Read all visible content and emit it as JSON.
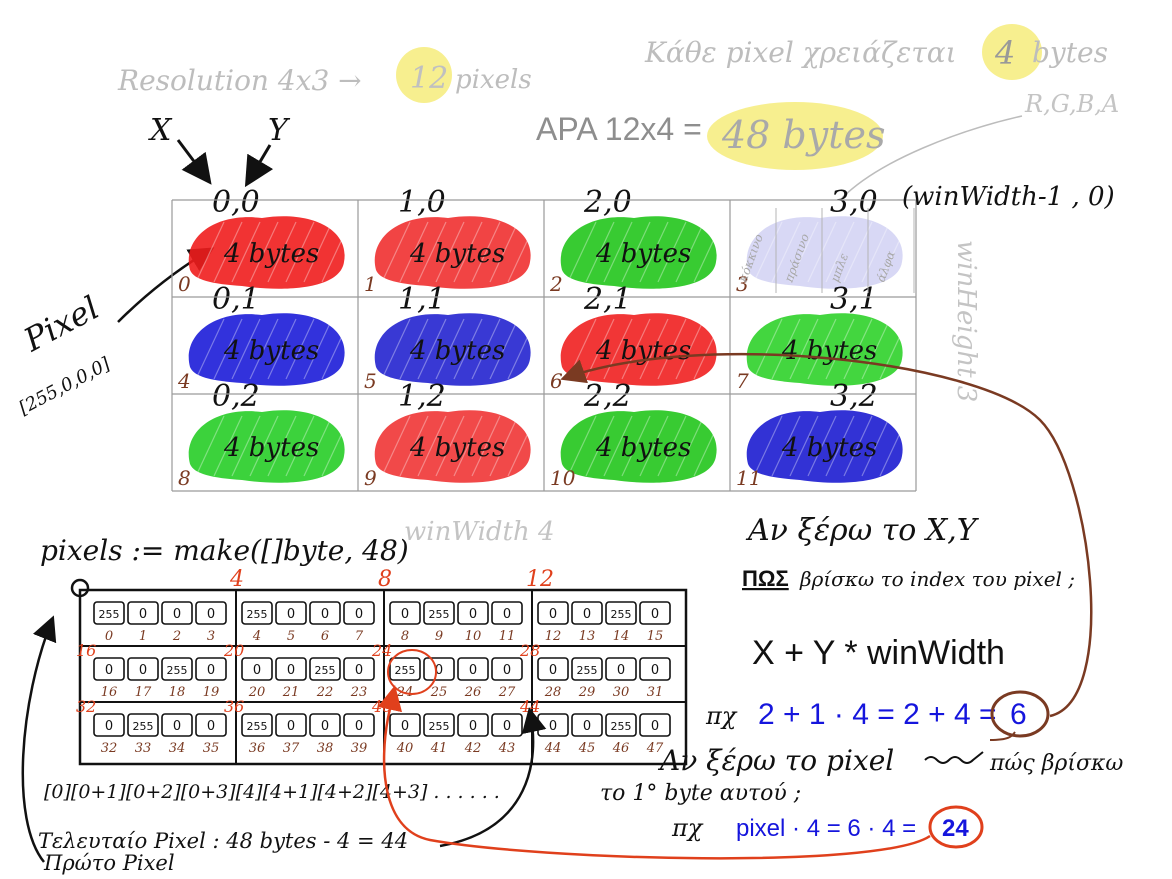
{
  "header": {
    "resolution_prefix": "Resolution 4x3 →",
    "resolution_count": "12",
    "resolution_suffix": "pixels",
    "bytes_per_pixel_prefix": "Κάθε pixel χρειάζεται",
    "bytes_per_pixel_value": "4",
    "bytes_per_pixel_suffix": "bytes",
    "channels": "R,G,B,A",
    "total_prefix": "ΑΡΑ 12x4 =",
    "total_value": "48 bytes"
  },
  "axes": {
    "x_label": "X",
    "y_label": "Y"
  },
  "pixel_note": {
    "label": "Pixel",
    "value": "[255,0,0,0]"
  },
  "grid": {
    "cell_text": "4 bytes",
    "cells": [
      {
        "coord": "0,0",
        "index": "0",
        "color": "#ef1d1d"
      },
      {
        "coord": "1,0",
        "index": "1",
        "color": "#ef3030"
      },
      {
        "coord": "2,0",
        "index": "2",
        "color": "#22c51c"
      },
      {
        "coord": "3,0",
        "index": "3",
        "color": "#a9a9e8"
      },
      {
        "coord": "0,1",
        "index": "4",
        "color": "#1c1cd8"
      },
      {
        "coord": "1,1",
        "index": "5",
        "color": "#2323cf"
      },
      {
        "coord": "2,1",
        "index": "6",
        "color": "#ef2020"
      },
      {
        "coord": "3,1",
        "index": "7",
        "color": "#2fd22a"
      },
      {
        "coord": "0,2",
        "index": "8",
        "color": "#27cd27"
      },
      {
        "coord": "1,2",
        "index": "9",
        "color": "#ef3535"
      },
      {
        "coord": "2,2",
        "index": "10",
        "color": "#22c51c"
      },
      {
        "coord": "3,2",
        "index": "11",
        "color": "#1c1cd0"
      }
    ],
    "last_col_channels": [
      "κόκκινο",
      "πράσινο",
      "μπλε",
      "άλφα"
    ],
    "corner_label": "(winWidth-1 , 0)",
    "height_label": "winHeight 3",
    "width_label": "winWidth 4"
  },
  "bytes_array": {
    "declaration": "pixels := make([]byte, 48)",
    "origin_marker": "o",
    "row_markers": [
      "4",
      "8",
      "12"
    ],
    "rows": [
      {
        "start_markers": [
          "",
          "",
          "",
          ""
        ],
        "cells": [
          {
            "vals": [
              "255",
              "0",
              "0",
              "0"
            ],
            "idx": [
              "0",
              "1",
              "2",
              "3"
            ]
          },
          {
            "vals": [
              "255",
              "0",
              "0",
              "0"
            ],
            "idx": [
              "4",
              "5",
              "6",
              "7"
            ]
          },
          {
            "vals": [
              "0",
              "255",
              "0",
              "0"
            ],
            "idx": [
              "8",
              "9",
              "10",
              "11"
            ]
          },
          {
            "vals": [
              "0",
              "0",
              "255",
              "0"
            ],
            "idx": [
              "12",
              "13",
              "14",
              "15"
            ]
          }
        ]
      },
      {
        "start_markers": [
          "16",
          "20",
          "24",
          "28"
        ],
        "cells": [
          {
            "vals": [
              "0",
              "0",
              "255",
              "0"
            ],
            "idx": [
              "16",
              "17",
              "18",
              "19"
            ]
          },
          {
            "vals": [
              "0",
              "0",
              "255",
              "0"
            ],
            "idx": [
              "20",
              "21",
              "22",
              "23"
            ]
          },
          {
            "vals": [
              "255",
              "0",
              "0",
              "0"
            ],
            "idx": [
              "24",
              "25",
              "26",
              "27"
            ]
          },
          {
            "vals": [
              "0",
              "255",
              "0",
              "0"
            ],
            "idx": [
              "28",
              "29",
              "30",
              "31"
            ]
          }
        ]
      },
      {
        "start_markers": [
          "32",
          "36",
          "40",
          "44"
        ],
        "cells": [
          {
            "vals": [
              "0",
              "255",
              "0",
              "0"
            ],
            "idx": [
              "32",
              "33",
              "34",
              "35"
            ]
          },
          {
            "vals": [
              "255",
              "0",
              "0",
              "0"
            ],
            "idx": [
              "36",
              "37",
              "38",
              "39"
            ]
          },
          {
            "vals": [
              "0",
              "255",
              "0",
              "0"
            ],
            "idx": [
              "40",
              "41",
              "42",
              "43"
            ]
          },
          {
            "vals": [
              "0",
              "0",
              "255",
              "0"
            ],
            "idx": [
              "44",
              "45",
              "46",
              "47"
            ]
          }
        ]
      }
    ],
    "index_sequence": "[0][0+1][0+2][0+3][4][4+1][4+2][4+3] . . . . . .",
    "last_pixel_note": "Τελευταίο Pixel : 48 bytes - 4 = 44",
    "first_pixel_note": "Πρώτο Pixel"
  },
  "explanation": {
    "q1_line1": "Αν ξέρω το X,Y",
    "q1_line2_bold": "ΠΩΣ",
    "q1_line2_rest": "βρίσκω το index του pixel ;",
    "formula": "X + Y * winWidth",
    "ex1_prefix": "πχ",
    "ex1_body": "2 + 1 · 4 = 2 + 4 =",
    "ex1_result": "6",
    "q2_line1": "Αν ξέρω το pixel",
    "q2_line1_end": "πώς βρίσκω",
    "q2_line2": "το 1° byte αυτού ;",
    "ex2_prefix": "πχ",
    "ex2_body": "pixel · 4 = 6 · 4 =",
    "ex2_result": "24"
  },
  "colors": {
    "red": "#ef1d1d",
    "green": "#22c51c",
    "blue": "#1c1cd8",
    "highlight": "#f4ea6a",
    "orange": "#e0401c",
    "brown": "#7a3a22",
    "explain_blue": "#1515dd"
  }
}
